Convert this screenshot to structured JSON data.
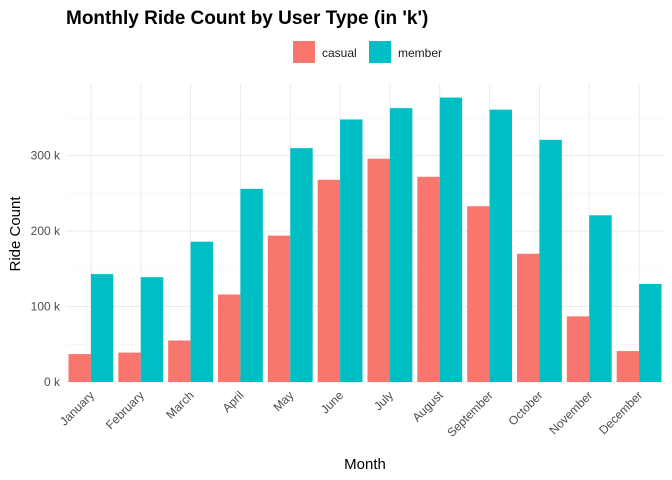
{
  "chart_data": {
    "type": "bar",
    "title": "Monthly Ride Count by User Type (in 'k')",
    "xlabel": "Month",
    "ylabel": "Ride Count",
    "categories": [
      "January",
      "February",
      "March",
      "April",
      "May",
      "June",
      "July",
      "August",
      "September",
      "October",
      "November",
      "December"
    ],
    "series": [
      {
        "name": "casual",
        "color": "#F8766D",
        "values": [
          37,
          39,
          55,
          116,
          194,
          268,
          296,
          272,
          233,
          170,
          87,
          41
        ]
      },
      {
        "name": "member",
        "color": "#00BFC4",
        "values": [
          143,
          139,
          186,
          256,
          310,
          348,
          363,
          377,
          361,
          321,
          221,
          130
        ]
      }
    ],
    "yticks": [
      0,
      100,
      200,
      300
    ],
    "ytick_labels": [
      "0 k",
      "100 k",
      "200 k",
      "300 k"
    ],
    "ylim": [
      0,
      395
    ],
    "legend_position": "top-center",
    "grid": true
  }
}
